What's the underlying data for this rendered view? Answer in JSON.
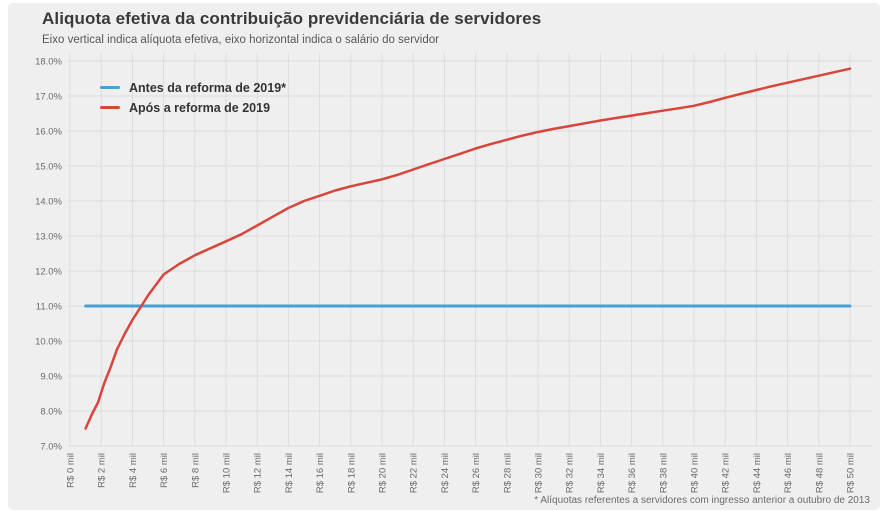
{
  "title": "Aliquota efetiva da contribuição previdenciária de servidores",
  "subtitle": "Eixo vertical indica alíquota efetiva, eixo horizontal indica o salário do servidor",
  "footnote": "* Alíquotas referentes a servidores com ingresso anterior a outubro de 2013",
  "legend": {
    "items": [
      {
        "label": "Antes da reforma de 2019*",
        "color": "#4a9fd4"
      },
      {
        "label": "Após a reforma de 2019",
        "color": "#d9443b"
      }
    ]
  },
  "colors": {
    "page_background": "#ffffff",
    "panel_background": "#efeff0",
    "grid": "#dcdcdf",
    "axis_text": "#6b6b6b",
    "title_text": "#3a3a3a",
    "before_reform_line": "#4a9fd4",
    "after_reform_line": "#d9443b"
  },
  "chart_data": {
    "type": "line",
    "title": "Aliquota efetiva da contribuição previdenciária de servidores",
    "xlabel": "salário do servidor",
    "ylabel": "alíquota efetiva",
    "xlim": [
      0,
      50
    ],
    "ylim": [
      7,
      18
    ],
    "grid": true,
    "legend_position": "top-left",
    "x_tick_values": [
      0,
      2,
      4,
      6,
      8,
      10,
      12,
      14,
      16,
      18,
      20,
      22,
      24,
      26,
      28,
      30,
      32,
      34,
      36,
      38,
      40,
      42,
      44,
      46,
      48,
      50
    ],
    "x_tick_labels": [
      "R$ 0 mil",
      "R$ 2 mil",
      "R$ 4 mil",
      "R$ 6 mil",
      "R$ 8 mil",
      "R$ 10 mil",
      "R$ 12 mil",
      "R$ 14 mil",
      "R$ 16 mil",
      "R$ 18 mil",
      "R$ 20 mil",
      "R$ 22 mil",
      "R$ 24 mil",
      "R$ 26 mil",
      "R$ 28 mil",
      "R$ 30 mil",
      "R$ 32 mil",
      "R$ 34 mil",
      "R$ 36 mil",
      "R$ 38 mil",
      "R$ 40 mil",
      "R$ 42 mil",
      "R$ 44 mil",
      "R$ 46 mil",
      "R$ 48 mil",
      "R$ 50 mil"
    ],
    "y_tick_values": [
      7,
      8,
      9,
      10,
      11,
      12,
      13,
      14,
      15,
      16,
      17,
      18
    ],
    "y_tick_labels": [
      "7.0%",
      "8.0%",
      "9.0%",
      "10.0%",
      "11.0%",
      "12.0%",
      "13.0%",
      "14.0%",
      "15.0%",
      "16.0%",
      "17.0%",
      "18.0%"
    ],
    "series": [
      {
        "name": "Antes da reforma de 2019*",
        "color": "#4a9fd4",
        "x": [
          1.0,
          50.0
        ],
        "y": [
          11.0,
          11.0
        ]
      },
      {
        "name": "Após a reforma de 2019",
        "color": "#d9443b",
        "x": [
          1.0,
          1.4,
          1.8,
          2.2,
          2.6,
          3.0,
          3.5,
          4.0,
          4.5,
          5.0,
          5.5,
          6.0,
          7.0,
          8.0,
          9.0,
          10.0,
          11.0,
          12.0,
          13.0,
          14.0,
          15.0,
          16.0,
          17.0,
          18.0,
          19.0,
          20.0,
          21.0,
          22.0,
          23.0,
          24.0,
          25.0,
          26.0,
          27.0,
          28.0,
          29.0,
          30.0,
          31.0,
          32.0,
          33.0,
          34.0,
          35.0,
          36.0,
          37.0,
          38.0,
          39.0,
          40.0,
          41.0,
          42.0,
          43.0,
          44.0,
          45.0,
          46.0,
          47.0,
          48.0,
          49.0,
          50.0
        ],
        "y": [
          7.5,
          7.9,
          8.25,
          8.8,
          9.25,
          9.75,
          10.2,
          10.6,
          10.95,
          11.3,
          11.6,
          11.9,
          12.2,
          12.45,
          12.65,
          12.85,
          13.05,
          13.3,
          13.55,
          13.8,
          14.0,
          14.15,
          14.3,
          14.42,
          14.52,
          14.62,
          14.75,
          14.9,
          15.05,
          15.2,
          15.35,
          15.5,
          15.63,
          15.75,
          15.87,
          15.97,
          16.06,
          16.14,
          16.22,
          16.3,
          16.37,
          16.44,
          16.51,
          16.58,
          16.65,
          16.72,
          16.83,
          16.95,
          17.06,
          17.17,
          17.28,
          17.38,
          17.48,
          17.58,
          17.68,
          17.78
        ]
      }
    ]
  }
}
